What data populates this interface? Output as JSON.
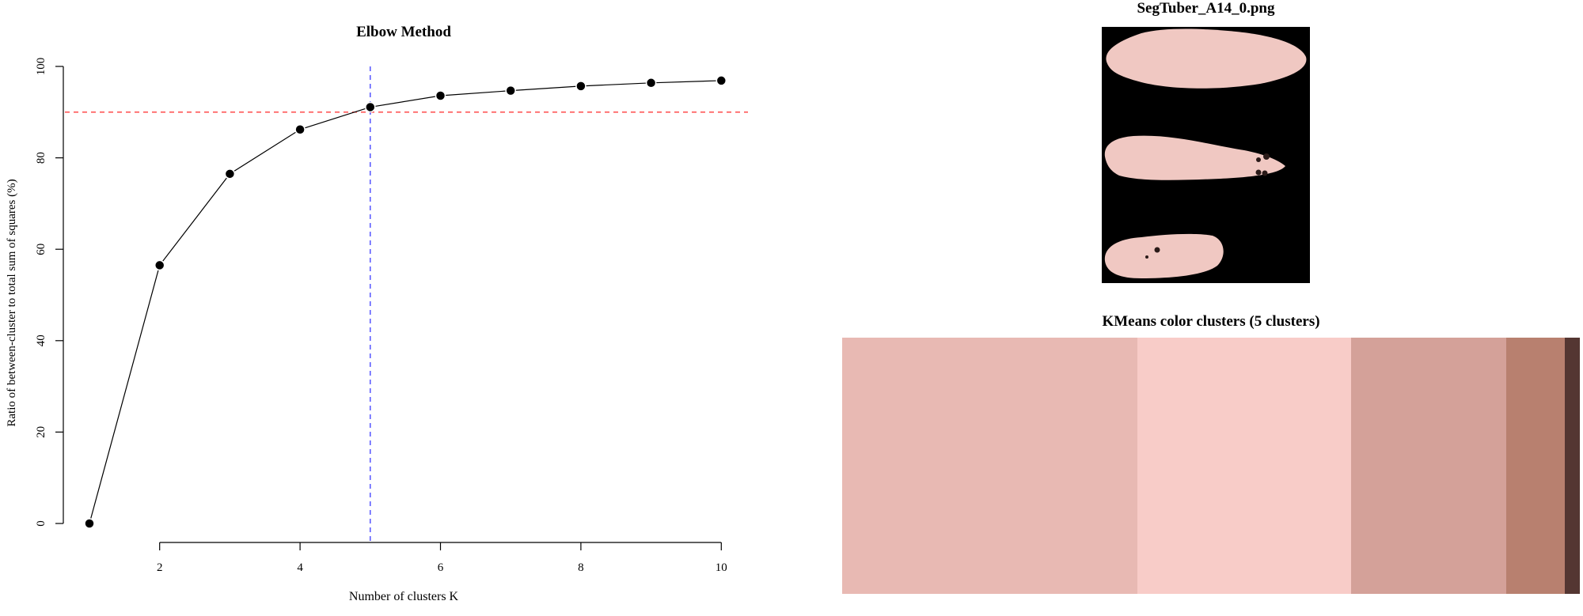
{
  "chart_data": [
    {
      "type": "line",
      "title": "Elbow Method",
      "xlabel": "Number of clusters K",
      "ylabel": "Ratio of between-cluster to total sum of squares (%)",
      "x": [
        1,
        2,
        3,
        4,
        5,
        6,
        7,
        8,
        9,
        10
      ],
      "series": [
        {
          "values": [
            0,
            56.5,
            76.5,
            86.2,
            91.1,
            93.6,
            94.7,
            95.7,
            96.4,
            96.9
          ],
          "color": "#000000"
        }
      ],
      "xlim": [
        1,
        10
      ],
      "ylim": [
        0,
        100
      ],
      "xticks": [
        "2",
        "4",
        "6",
        "8",
        "10"
      ],
      "yticks": [
        "0",
        "20",
        "40",
        "60",
        "80",
        "100"
      ],
      "reference_lines": {
        "horizontal": {
          "value": 90,
          "color": "#ff3b3b",
          "style": "dashed"
        },
        "vertical": {
          "value": 5,
          "color": "#3b3bff",
          "style": "dashed"
        }
      },
      "grid": false
    },
    {
      "type": "bar",
      "title": "KMeans color clusters (5 clusters)",
      "orientation": "stacked-horizontal",
      "values": [
        0.4,
        0.29,
        0.21,
        0.08,
        0.02
      ],
      "colors": [
        "#e8b9b3",
        "#f8ccc8",
        "#d4a199",
        "#b8806f",
        "#543632"
      ]
    }
  ],
  "image_panel": {
    "title": "SegTuber_A14_0.png",
    "background": "#000000",
    "tuber_color": "#f0c8c2",
    "spot_color": "#2a1a18"
  }
}
